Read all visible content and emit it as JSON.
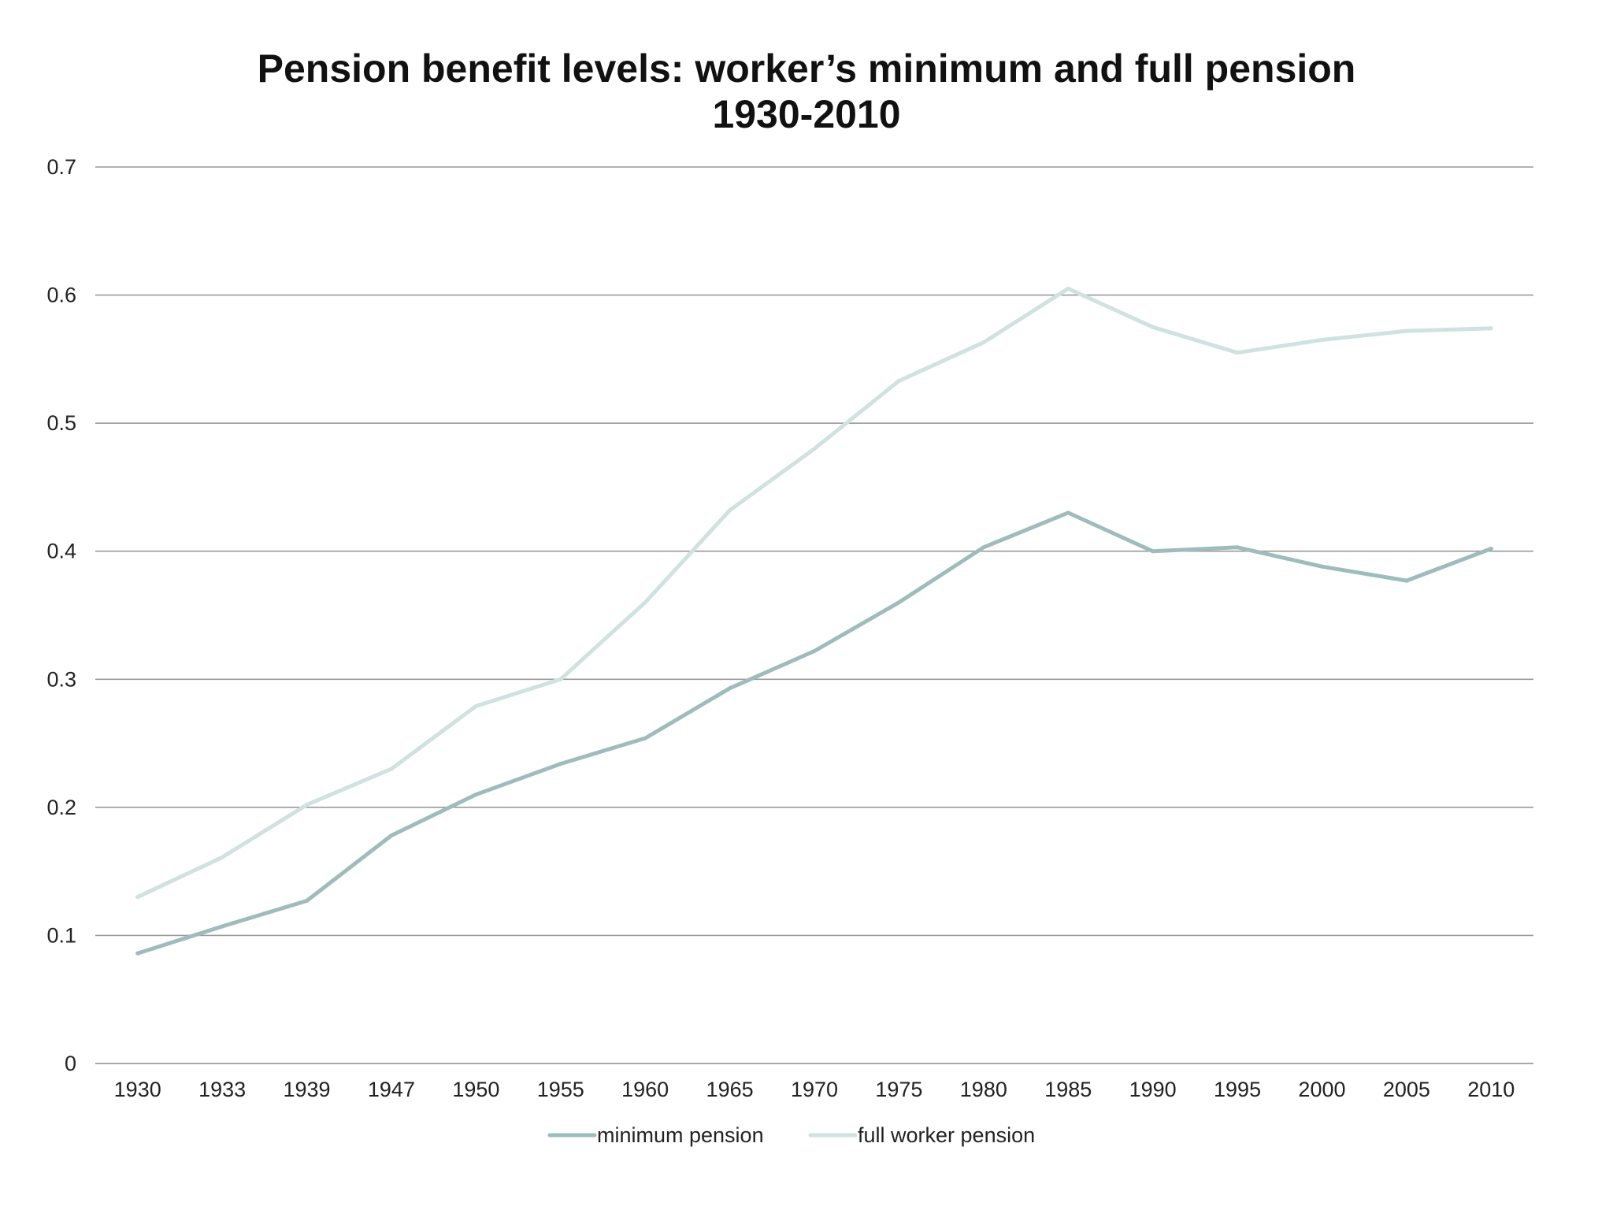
{
  "chart_data": {
    "type": "line",
    "title": "Pension benefit levels: worker’s minimum and full pension",
    "subtitle": "1930-2010",
    "xlabel": "",
    "ylabel": "",
    "categories": [
      "1930",
      "1933",
      "1939",
      "1947",
      "1950",
      "1955",
      "1960",
      "1965",
      "1970",
      "1975",
      "1980",
      "1985",
      "1990",
      "1995",
      "2000",
      "2005",
      "2010"
    ],
    "ylim": [
      0,
      0.7
    ],
    "yticks": [
      "0",
      "0.1",
      "0.2",
      "0.3",
      "0.4",
      "0.5",
      "0.6",
      "0.7"
    ],
    "grid": true,
    "legend_position": "bottom",
    "series": [
      {
        "name": "minimum pension",
        "color": "#9fbcbc",
        "values": [
          0.086,
          0.107,
          0.127,
          0.178,
          0.21,
          0.234,
          0.254,
          0.293,
          0.322,
          0.36,
          0.403,
          0.43,
          0.4,
          0.403,
          0.388,
          0.377,
          0.402
        ]
      },
      {
        "name": "full worker pension",
        "color": "#cfe2e0",
        "values": [
          0.13,
          0.161,
          0.202,
          0.23,
          0.279,
          0.3,
          0.36,
          0.432,
          0.48,
          0.533,
          0.563,
          0.605,
          0.575,
          0.555,
          0.565,
          0.572,
          0.574
        ]
      }
    ]
  }
}
